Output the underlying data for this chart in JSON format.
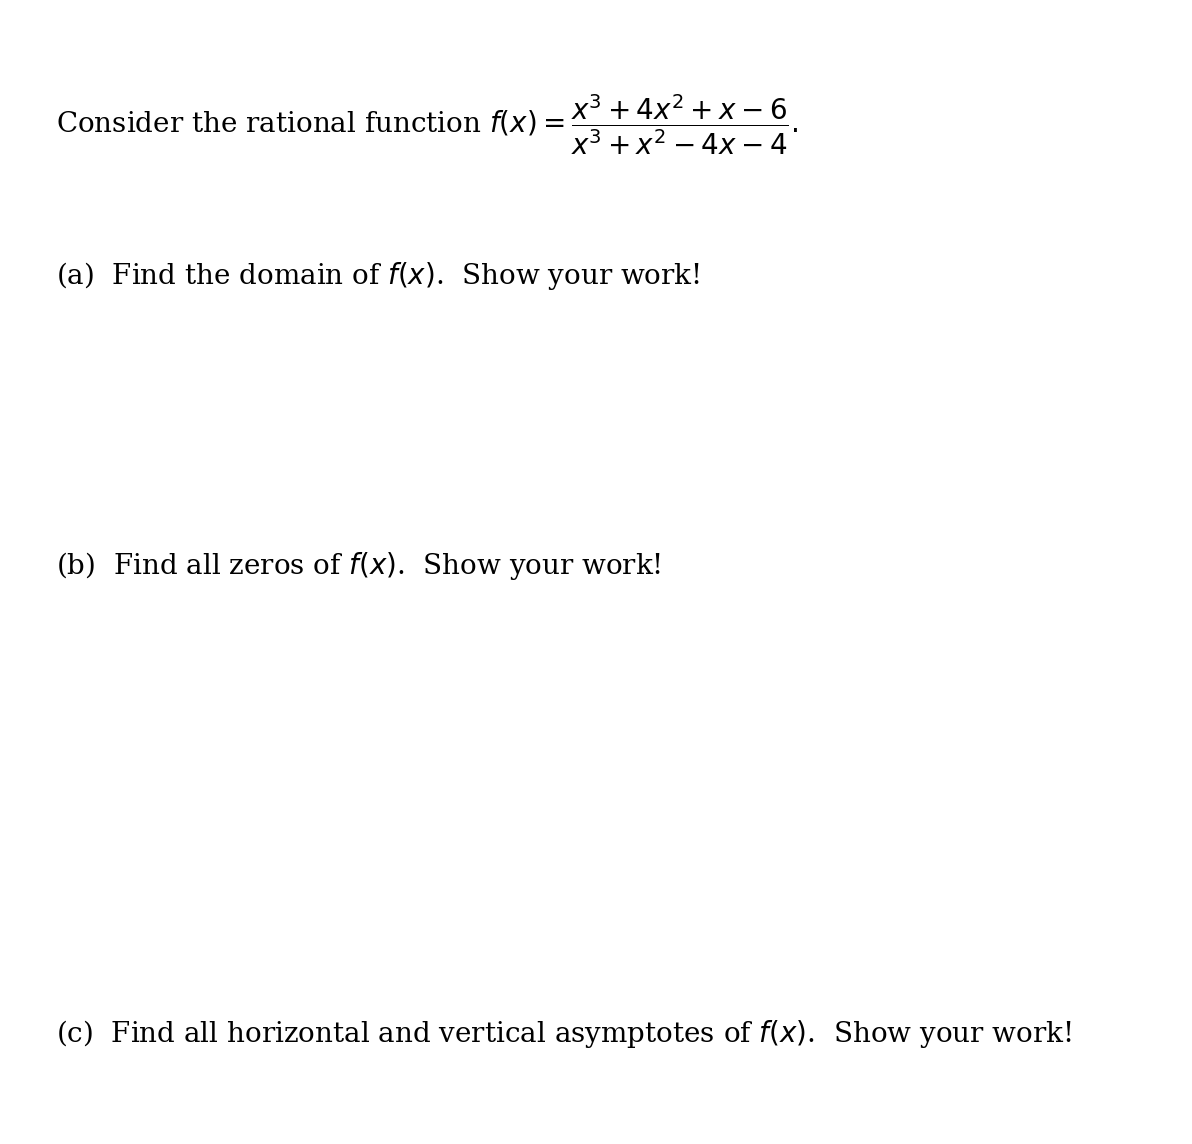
{
  "background_color": "#ffffff",
  "intro_text": "Consider the rational function $f(x) = \\dfrac{x^3 + 4x^2 + x - 6}{x^3 + x^2 - 4x - 4}.$",
  "part_a": "(a)  Find the domain of $f(x)$.  Show your work!",
  "part_b": "(b)  Find all zeros of $f(x)$.  Show your work!",
  "part_c": "(c)  Find all horizontal and vertical asymptotes of $f(x)$.  Show your work!",
  "font_size_intro": 20,
  "font_size_parts": 20,
  "fig_width": 11.92,
  "fig_height": 11.44
}
